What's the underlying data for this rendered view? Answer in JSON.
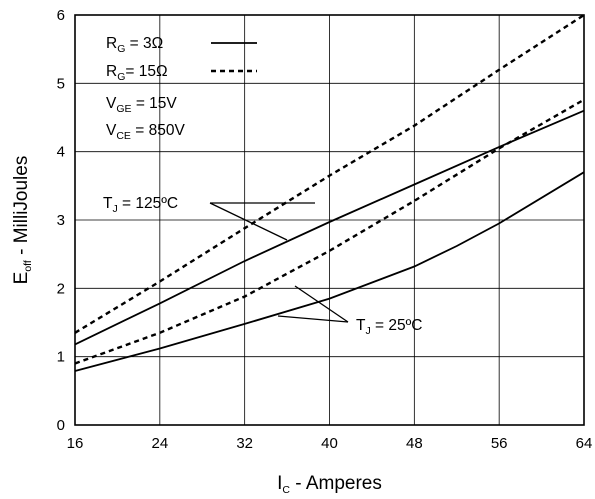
{
  "chart_data": {
    "type": "line",
    "xlabel": {
      "main": "I",
      "sub": "C",
      "rest": " - Amperes"
    },
    "ylabel": {
      "main": "E",
      "sub": "off",
      "rest": " - MilliJoules"
    },
    "xlim": [
      16,
      64
    ],
    "ylim": [
      0,
      6
    ],
    "xticks": [
      16,
      24,
      32,
      40,
      48,
      56,
      64
    ],
    "yticks": [
      0,
      1,
      2,
      3,
      4,
      5,
      6
    ],
    "grid": true,
    "legend_position": "top-left",
    "legend": [
      {
        "main": "R",
        "sub": "G",
        "rest": " = 3Ω",
        "style": "solid"
      },
      {
        "main": "R",
        "sub": "G",
        "rest": "= 15Ω",
        "style": "dashed"
      }
    ],
    "conditions": [
      {
        "main": "V",
        "sub": "GE",
        "rest": " = 15V"
      },
      {
        "main": "V",
        "sub": "CE",
        "rest": " = 850V"
      }
    ],
    "annotations": [
      {
        "id": "tj125",
        "main": "T",
        "sub": "J",
        "rest": " = 125ºC"
      },
      {
        "id": "tj25",
        "main": "T",
        "sub": "J",
        "rest": " = 25ºC"
      }
    ],
    "series": [
      {
        "rg": "3Ω",
        "tj": "125ºC",
        "style": "solid",
        "x": [
          16,
          24,
          32,
          40,
          48,
          56,
          64
        ],
        "y": [
          1.18,
          1.78,
          2.4,
          2.97,
          3.52,
          4.07,
          4.6
        ]
      },
      {
        "rg": "15Ω",
        "tj": "125ºC",
        "style": "dashed",
        "x": [
          16,
          24,
          32,
          40,
          48,
          56,
          64
        ],
        "y": [
          1.35,
          2.1,
          2.88,
          3.65,
          4.38,
          5.2,
          6.0
        ]
      },
      {
        "rg": "3Ω",
        "tj": "25ºC",
        "style": "solid",
        "x": [
          16,
          24,
          32,
          40,
          48,
          52,
          56,
          64
        ],
        "y": [
          0.79,
          1.12,
          1.48,
          1.85,
          2.32,
          2.62,
          2.95,
          3.7
        ]
      },
      {
        "rg": "15Ω",
        "tj": "25ºC",
        "style": "dashed",
        "x": [
          16,
          24,
          32,
          40,
          48,
          56,
          64
        ],
        "y": [
          0.9,
          1.35,
          1.88,
          2.55,
          3.28,
          4.05,
          4.76
        ]
      }
    ]
  }
}
